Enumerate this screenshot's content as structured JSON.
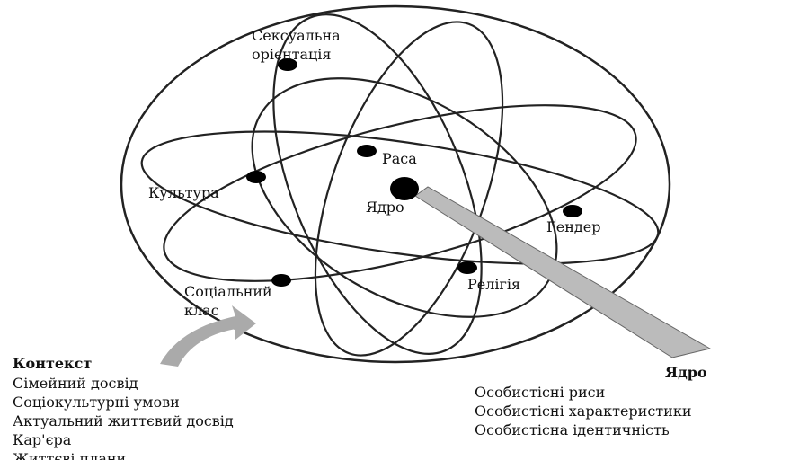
{
  "nodes": [
    {
      "label": [
        "Сексуальна",
        "орієнтація"
      ]
    },
    {
      "label": [
        "Раса"
      ]
    },
    {
      "label": [
        "Культура"
      ]
    },
    {
      "label": [
        "Ядро"
      ]
    },
    {
      "label": [
        "Ґендер"
      ]
    },
    {
      "label": [
        "Релігія"
      ]
    },
    {
      "label": [
        "Соціальний",
        "клас"
      ]
    }
  ],
  "context": {
    "title": "Контекст",
    "items": [
      "Сімейний досвід",
      "Соціокультурні умови",
      "Актуальний життєвий досвід",
      "Кар'єра",
      "Життєві плани"
    ]
  },
  "core": {
    "title": "Ядро",
    "items": [
      "Особистісні риси",
      "Особистісні характеристики",
      "Особистісна ідентичність"
    ]
  }
}
